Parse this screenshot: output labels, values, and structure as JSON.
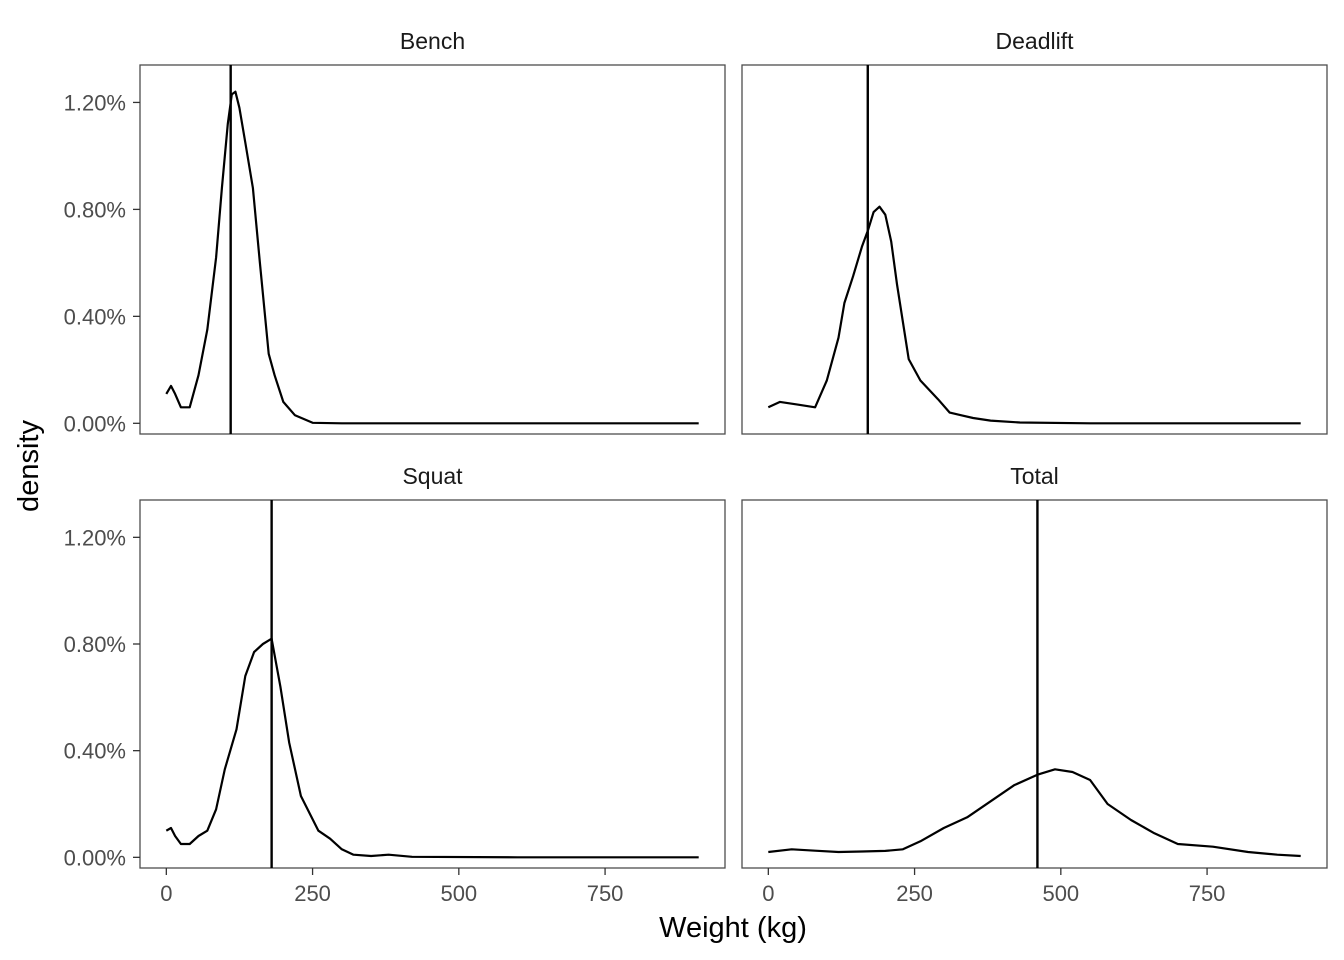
{
  "chart_data": {
    "type": "line",
    "facet_layout": "2x2 grid",
    "xlabel": "Weight (kg)",
    "ylabel": "density",
    "xlim": [
      -45,
      955
    ],
    "ylim": [
      -0.0004,
      0.0134
    ],
    "x_ticks": [
      0,
      250,
      500,
      750
    ],
    "x_tick_labels": [
      "0",
      "250",
      "500",
      "750"
    ],
    "y_ticks": [
      0,
      0.004,
      0.008,
      0.012
    ],
    "y_tick_labels": [
      "0.00%",
      "0.40%",
      "0.80%",
      "1.20%"
    ],
    "grid": false,
    "panels": [
      {
        "title": "Bench",
        "vline": 110,
        "x": [
          0,
          8,
          15,
          25,
          40,
          55,
          70,
          85,
          95,
          105,
          112,
          118,
          125,
          135,
          148,
          160,
          175,
          185,
          200,
          220,
          250,
          300,
          400,
          600,
          800,
          910
        ],
        "y": [
          0.0011,
          0.0014,
          0.0011,
          0.0006,
          0.0006,
          0.0018,
          0.0035,
          0.0062,
          0.0088,
          0.0112,
          0.0123,
          0.0124,
          0.0118,
          0.0105,
          0.0088,
          0.006,
          0.0026,
          0.0018,
          0.0008,
          0.0003,
          2e-05,
          0.0,
          0.0,
          0.0,
          0.0,
          0.0
        ]
      },
      {
        "title": "Deadlift",
        "vline": 170,
        "x": [
          0,
          20,
          50,
          80,
          100,
          120,
          130,
          145,
          160,
          170,
          180,
          190,
          200,
          210,
          220,
          240,
          260,
          290,
          310,
          330,
          350,
          380,
          430,
          550,
          700,
          910
        ],
        "y": [
          0.0006,
          0.0008,
          0.0007,
          0.0006,
          0.0016,
          0.0032,
          0.0045,
          0.0055,
          0.0066,
          0.0072,
          0.0079,
          0.0081,
          0.0078,
          0.0068,
          0.0052,
          0.0024,
          0.0016,
          0.0009,
          0.0004,
          0.0003,
          0.0002,
          0.0001,
          3e-05,
          0.0,
          0.0,
          0.0
        ]
      },
      {
        "title": "Squat",
        "vline": 180,
        "x": [
          0,
          8,
          15,
          25,
          40,
          55,
          70,
          85,
          100,
          120,
          135,
          150,
          165,
          180,
          195,
          210,
          230,
          260,
          280,
          300,
          320,
          350,
          380,
          420,
          600,
          910
        ],
        "y": [
          0.001,
          0.0011,
          0.0008,
          0.0005,
          0.0005,
          0.0008,
          0.001,
          0.0018,
          0.0033,
          0.0048,
          0.0068,
          0.0077,
          0.008,
          0.0082,
          0.0064,
          0.0043,
          0.0023,
          0.001,
          0.0007,
          0.0003,
          0.0001,
          5e-05,
          0.0001,
          2e-05,
          0.0,
          0.0
        ]
      },
      {
        "title": "Total",
        "vline": 460,
        "x": [
          0,
          40,
          80,
          120,
          160,
          200,
          230,
          260,
          300,
          340,
          380,
          420,
          460,
          490,
          520,
          550,
          580,
          620,
          660,
          700,
          760,
          820,
          870,
          910
        ],
        "y": [
          0.0002,
          0.0003,
          0.00025,
          0.0002,
          0.00022,
          0.00024,
          0.0003,
          0.0006,
          0.0011,
          0.0015,
          0.0021,
          0.0027,
          0.0031,
          0.0033,
          0.0032,
          0.0029,
          0.002,
          0.0014,
          0.0009,
          0.0005,
          0.0004,
          0.0002,
          0.0001,
          5e-05
        ]
      }
    ]
  }
}
